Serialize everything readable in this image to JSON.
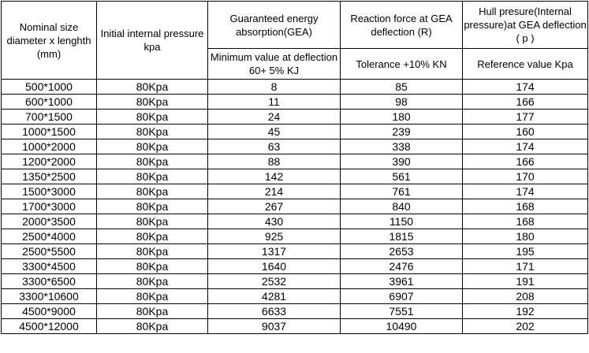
{
  "headers": {
    "col1": "Nominal size diameter  x lenghth (mm)",
    "col2": "Initial internal pressure kpa",
    "col3": "Guaranteed energy absorption(GEA)",
    "col4": "Reaction force at GEA deflection (R)",
    "col5": "Hull presure(Internal pressure)at GEA deflection ( p )",
    "sub3": "Minimum value at deflection 60+ 5% KJ",
    "sub4": "Tolerance +10% KN",
    "sub5": "Reference value Kpa"
  },
  "rows": [
    [
      "500*1000",
      "80Kpa",
      "8",
      "85",
      "174"
    ],
    [
      "600*1000",
      "80Kpa",
      "11",
      "98",
      "166"
    ],
    [
      "700*1500",
      "80Kpa",
      "24",
      "180",
      "177"
    ],
    [
      "1000*1500",
      "80Kpa",
      "45",
      "239",
      "160"
    ],
    [
      "1000*2000",
      "80Kpa",
      "63",
      "338",
      "174"
    ],
    [
      "1200*2000",
      "80Kpa",
      "88",
      "390",
      "166"
    ],
    [
      "1350*2500",
      "80Kpa",
      "142",
      "561",
      "170"
    ],
    [
      "1500*3000",
      "80Kpa",
      "214",
      "761",
      "174"
    ],
    [
      "1700*3000",
      "80Kpa",
      "267",
      "840",
      "168"
    ],
    [
      "2000*3500",
      "80Kpa",
      "430",
      "1150",
      "168"
    ],
    [
      "2500*4000",
      "80Kpa",
      "925",
      "1815",
      "180"
    ],
    [
      "2500*5500",
      "80Kpa",
      "1317",
      "2653",
      "195"
    ],
    [
      "3300*4500",
      "80Kpa",
      "1640",
      "2476",
      "171"
    ],
    [
      "3300*6500",
      "80Kpa",
      "2532",
      "3961",
      "191"
    ],
    [
      "3300*10600",
      "80Kpa",
      "4281",
      "6907",
      "208"
    ],
    [
      "4500*9000",
      "80Kpa",
      "6633",
      "7551",
      "192"
    ],
    [
      "4500*12000",
      "80Kpa",
      "9037",
      "10490",
      "202"
    ]
  ]
}
